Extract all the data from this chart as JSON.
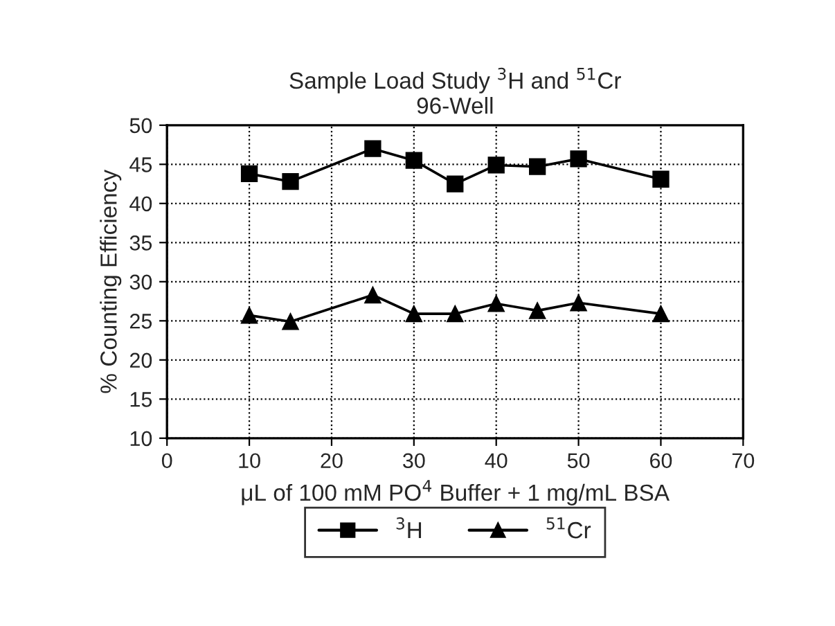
{
  "chart_data": {
    "type": "line",
    "title": "Sample Load Study $^{3}$H and $^{51}$Cr\n96-Well",
    "xlabel": "μL of 100 mM PO$^{4}$ Buffer + 1 mg/mL BSA",
    "ylabel": "% Counting Efficiency",
    "x": [
      10,
      15,
      25,
      30,
      35,
      40,
      45,
      50,
      60
    ],
    "series": [
      {
        "name": "$^{3}$H",
        "color": "#000000",
        "marker": "square",
        "values": [
          43.8,
          42.8,
          47.0,
          45.5,
          42.5,
          44.9,
          44.7,
          45.7,
          43.1
        ]
      },
      {
        "name": "$^{51}$Cr",
        "color": "#000000",
        "marker": "triangle",
        "values": [
          25.7,
          24.9,
          28.3,
          25.9,
          25.9,
          27.2,
          26.3,
          27.3,
          25.9
        ]
      }
    ],
    "xlim": [
      0,
      70
    ],
    "xticks": [
      0,
      10,
      20,
      30,
      40,
      50,
      60,
      70
    ],
    "ylim": [
      10,
      50
    ],
    "yticks": [
      10,
      15,
      20,
      25,
      30,
      35,
      40,
      45,
      50
    ],
    "grid": true,
    "legend": "bottom",
    "line_style": "solid"
  }
}
